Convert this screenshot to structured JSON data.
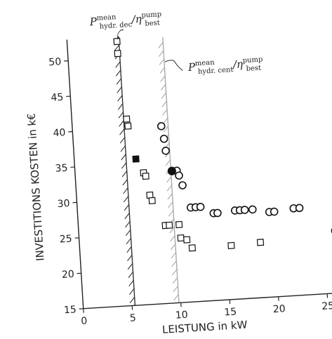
{
  "chart_data": {
    "type": "scatter",
    "title": "",
    "xlabel": "LEISTUNG in kW",
    "ylabel": "INVESTITIONS KOSTEN in k€",
    "xlim": [
      0,
      26
    ],
    "ylim": [
      15,
      52
    ],
    "x_ticks": [
      0,
      5,
      10,
      15,
      20,
      25
    ],
    "y_ticks": [
      15,
      20,
      25,
      30,
      35,
      40,
      45,
      50
    ],
    "grid": false,
    "legend": "none",
    "series": [
      {
        "marker": "square-open",
        "points": [
          [
            5.1,
            52.3
          ],
          [
            5.1,
            50.6
          ],
          [
            5.6,
            41.3
          ],
          [
            5.7,
            40.3
          ],
          [
            7.0,
            33.6
          ],
          [
            7.2,
            33.1
          ],
          [
            7.5,
            30.4
          ],
          [
            7.7,
            29.6
          ],
          [
            8.9,
            26.0
          ],
          [
            9.3,
            26.0
          ],
          [
            10.3,
            26.0
          ],
          [
            10.4,
            24.1
          ],
          [
            11.0,
            23.8
          ],
          [
            11.5,
            22.6
          ],
          [
            15.5,
            22.6
          ],
          [
            18.5,
            22.8
          ]
        ]
      },
      {
        "marker": "square-filled",
        "points": [
          [
            6.3,
            35.6
          ]
        ]
      },
      {
        "marker": "circle-open",
        "points": [
          [
            9.1,
            40.0
          ],
          [
            9.3,
            38.2
          ],
          [
            9.4,
            36.5
          ],
          [
            10.4,
            33.6
          ],
          [
            10.6,
            32.9
          ],
          [
            10.9,
            31.5
          ],
          [
            11.6,
            28.3
          ],
          [
            12.1,
            28.3
          ],
          [
            12.6,
            28.3
          ],
          [
            13.9,
            27.3
          ],
          [
            14.3,
            27.3
          ],
          [
            16.1,
            27.5
          ],
          [
            16.6,
            27.5
          ],
          [
            17.1,
            27.5
          ],
          [
            17.9,
            27.5
          ],
          [
            19.6,
            27.0
          ],
          [
            20.1,
            27.0
          ],
          [
            22.1,
            27.3
          ],
          [
            22.7,
            27.3
          ],
          [
            26.2,
            23.8
          ]
        ]
      },
      {
        "marker": "circle-filled",
        "points": [
          [
            9.9,
            33.6
          ]
        ]
      }
    ],
    "reference_lines": [
      {
        "x": 5.3,
        "style": "hatched",
        "color": "#333333",
        "label_main": "P",
        "label_sup": "mean",
        "label_sub": "hydr. dec",
        "label_tail": "/η",
        "label_tail_sup": "pump",
        "label_tail_sub": "best"
      },
      {
        "x": 9.8,
        "style": "hatched",
        "color": "#aaaaaa",
        "label_main": "P",
        "label_sup": "mean",
        "label_sub": "hydr. cent",
        "label_tail": "/η",
        "label_tail_sup": "pump",
        "label_tail_sub": "best"
      }
    ]
  }
}
